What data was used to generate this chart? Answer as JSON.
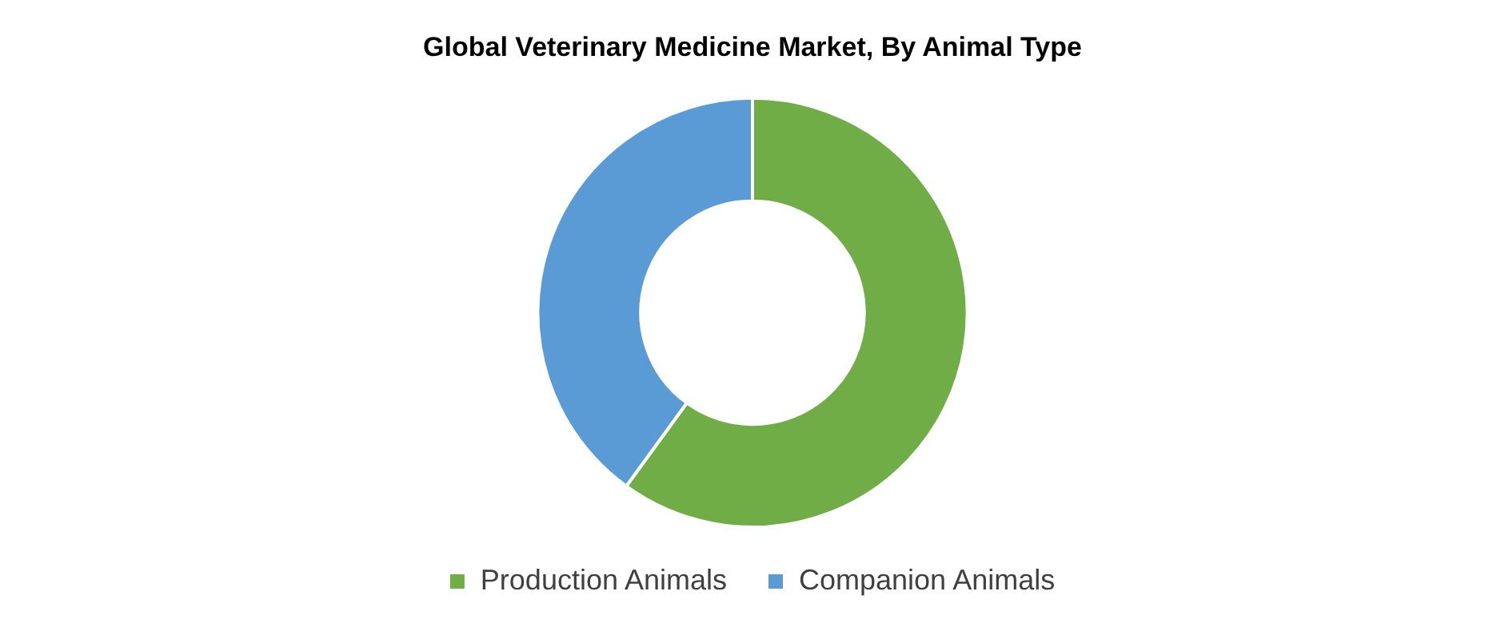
{
  "chart_data": {
    "type": "donut",
    "title": "Global Veterinary Medicine Market, By Animal Type",
    "categories": [
      "Production Animals",
      "Companion Animals"
    ],
    "values": [
      60,
      40
    ],
    "colors": [
      "#70ad47",
      "#5b9bd5"
    ],
    "legend": "bottom"
  }
}
